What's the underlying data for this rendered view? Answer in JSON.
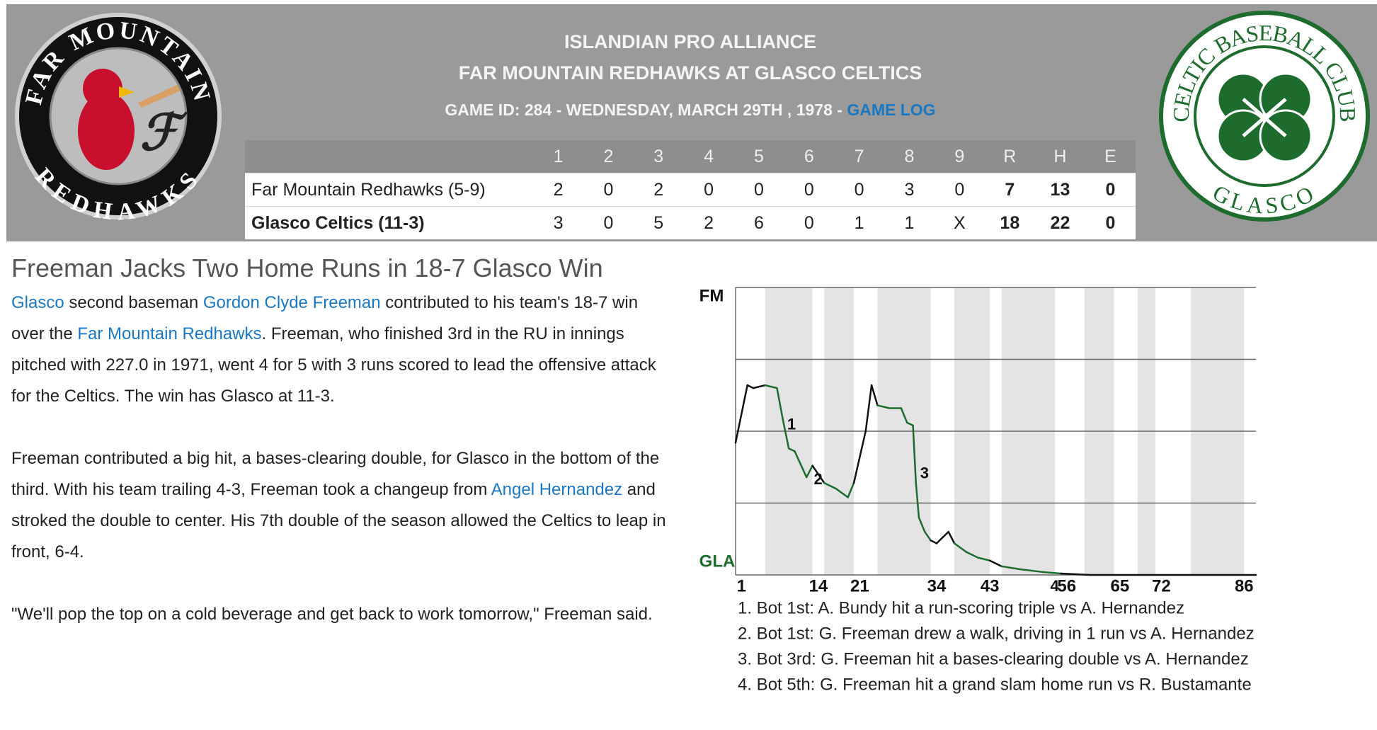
{
  "header": {
    "league": "ISLANDIAN PRO ALLIANCE",
    "matchup": "FAR MOUNTAIN REDHAWKS AT GLASCO CELTICS",
    "game_info": "GAME ID: 284 - WEDNESDAY, MARCH 29TH , 1978 -",
    "game_log_link": "GAME LOG"
  },
  "logos": {
    "away_top": "FAR MOUNTAIN",
    "away_bottom": "REDHAWKS",
    "home_top": "CELTIC BASEBALL CLUB",
    "home_bottom": "GLASCO"
  },
  "linescore": {
    "columns": [
      "1",
      "2",
      "3",
      "4",
      "5",
      "6",
      "7",
      "8",
      "9",
      "R",
      "H",
      "E"
    ],
    "rows": [
      {
        "team": "Far Mountain Redhawks (5-9)",
        "scores": [
          2,
          0,
          2,
          0,
          0,
          0,
          0,
          3,
          0,
          7,
          13,
          0
        ]
      },
      {
        "team": "Glasco Celtics (11-3)",
        "scores": [
          3,
          0,
          5,
          2,
          6,
          0,
          1,
          1,
          "X",
          18,
          22,
          0
        ]
      }
    ]
  },
  "article": {
    "title": "Freeman Jacks Two Home Runs in 18-7 Glasco Win",
    "paragraphs": [
      [
        {
          "link": "Glasco"
        },
        " second baseman ",
        {
          "link": "Gordon Clyde Freeman"
        },
        " contributed to his team's 18-7 win over the ",
        {
          "link": "Far Mountain Redhawks"
        },
        ". Freeman, who finished 3rd in the RU in innings pitched with 227.0 in 1971, went 4 for 5 with 3 runs scored to lead the offensive attack for the Celtics. The win has Glasco at 11-3."
      ],
      [
        "Freeman contributed a big hit, a bases-clearing double, for Glasco in the bottom of the third. With his team trailing 4-3, Freeman took a changeup from ",
        {
          "link": "Angel Hernandez"
        },
        " and stroked the double to center. His 7th double of the season allowed the Celtics to leap in front, 6-4."
      ],
      [
        "\"We'll pop the top on a cold beverage and get back to work tomorrow,\" Freeman said."
      ]
    ]
  },
  "win_probability_chart": {
    "type": "line",
    "top_label": "FM",
    "bottom_label": "GLA",
    "xlim": [
      0,
      88
    ],
    "ylim": [
      0,
      100
    ],
    "yticks": [
      0,
      25,
      50,
      75,
      100
    ],
    "xticks": [
      1,
      14,
      21,
      34,
      43,
      56,
      65,
      72,
      86
    ],
    "bottom_halves": [
      [
        5,
        13
      ],
      [
        15,
        20
      ],
      [
        24,
        33
      ],
      [
        37,
        43
      ],
      [
        45,
        54
      ],
      [
        59,
        64
      ],
      [
        68,
        71
      ],
      [
        77,
        86
      ]
    ],
    "band_color": "#e4e4e4",
    "top_half_color": "#111111",
    "bottom_half_color": "#1e6b2e",
    "series": [
      {
        "x": [
          0,
          2,
          3,
          5,
          7,
          8,
          9,
          10,
          12,
          13,
          14,
          15,
          17,
          19,
          20,
          22,
          23,
          24,
          26,
          28,
          29,
          30,
          30.5,
          31,
          32,
          33,
          34,
          35,
          36,
          37,
          39,
          41,
          43,
          45,
          48,
          52,
          55,
          60,
          88
        ],
        "values": [
          46,
          66,
          65,
          66,
          65,
          54,
          44,
          43,
          34,
          38,
          35,
          32,
          30,
          27,
          32,
          50,
          66,
          59,
          58,
          58,
          53,
          52,
          32,
          20,
          15,
          12,
          11,
          13,
          15,
          11,
          8,
          6,
          5,
          3,
          2,
          1,
          0.5,
          0,
          0
        ]
      }
    ],
    "markers": [
      {
        "label": "1",
        "x": 8.5,
        "y": 52
      },
      {
        "label": "2",
        "x": 13,
        "y": 33
      },
      {
        "label": "3",
        "x": 31,
        "y": 35
      },
      {
        "label": "4",
        "x": 53
      }
    ],
    "notes": [
      "1. Bot 1st: A. Bundy hit a run-scoring triple vs A. Hernandez",
      "2. Bot 1st: G. Freeman drew a walk, driving in 1 run vs A. Hernandez",
      "3. Bot 3rd: G. Freeman hit a bases-clearing double vs A. Hernandez",
      "4. Bot 5th: G. Freeman hit a grand slam home run vs R. Bustamante"
    ]
  }
}
